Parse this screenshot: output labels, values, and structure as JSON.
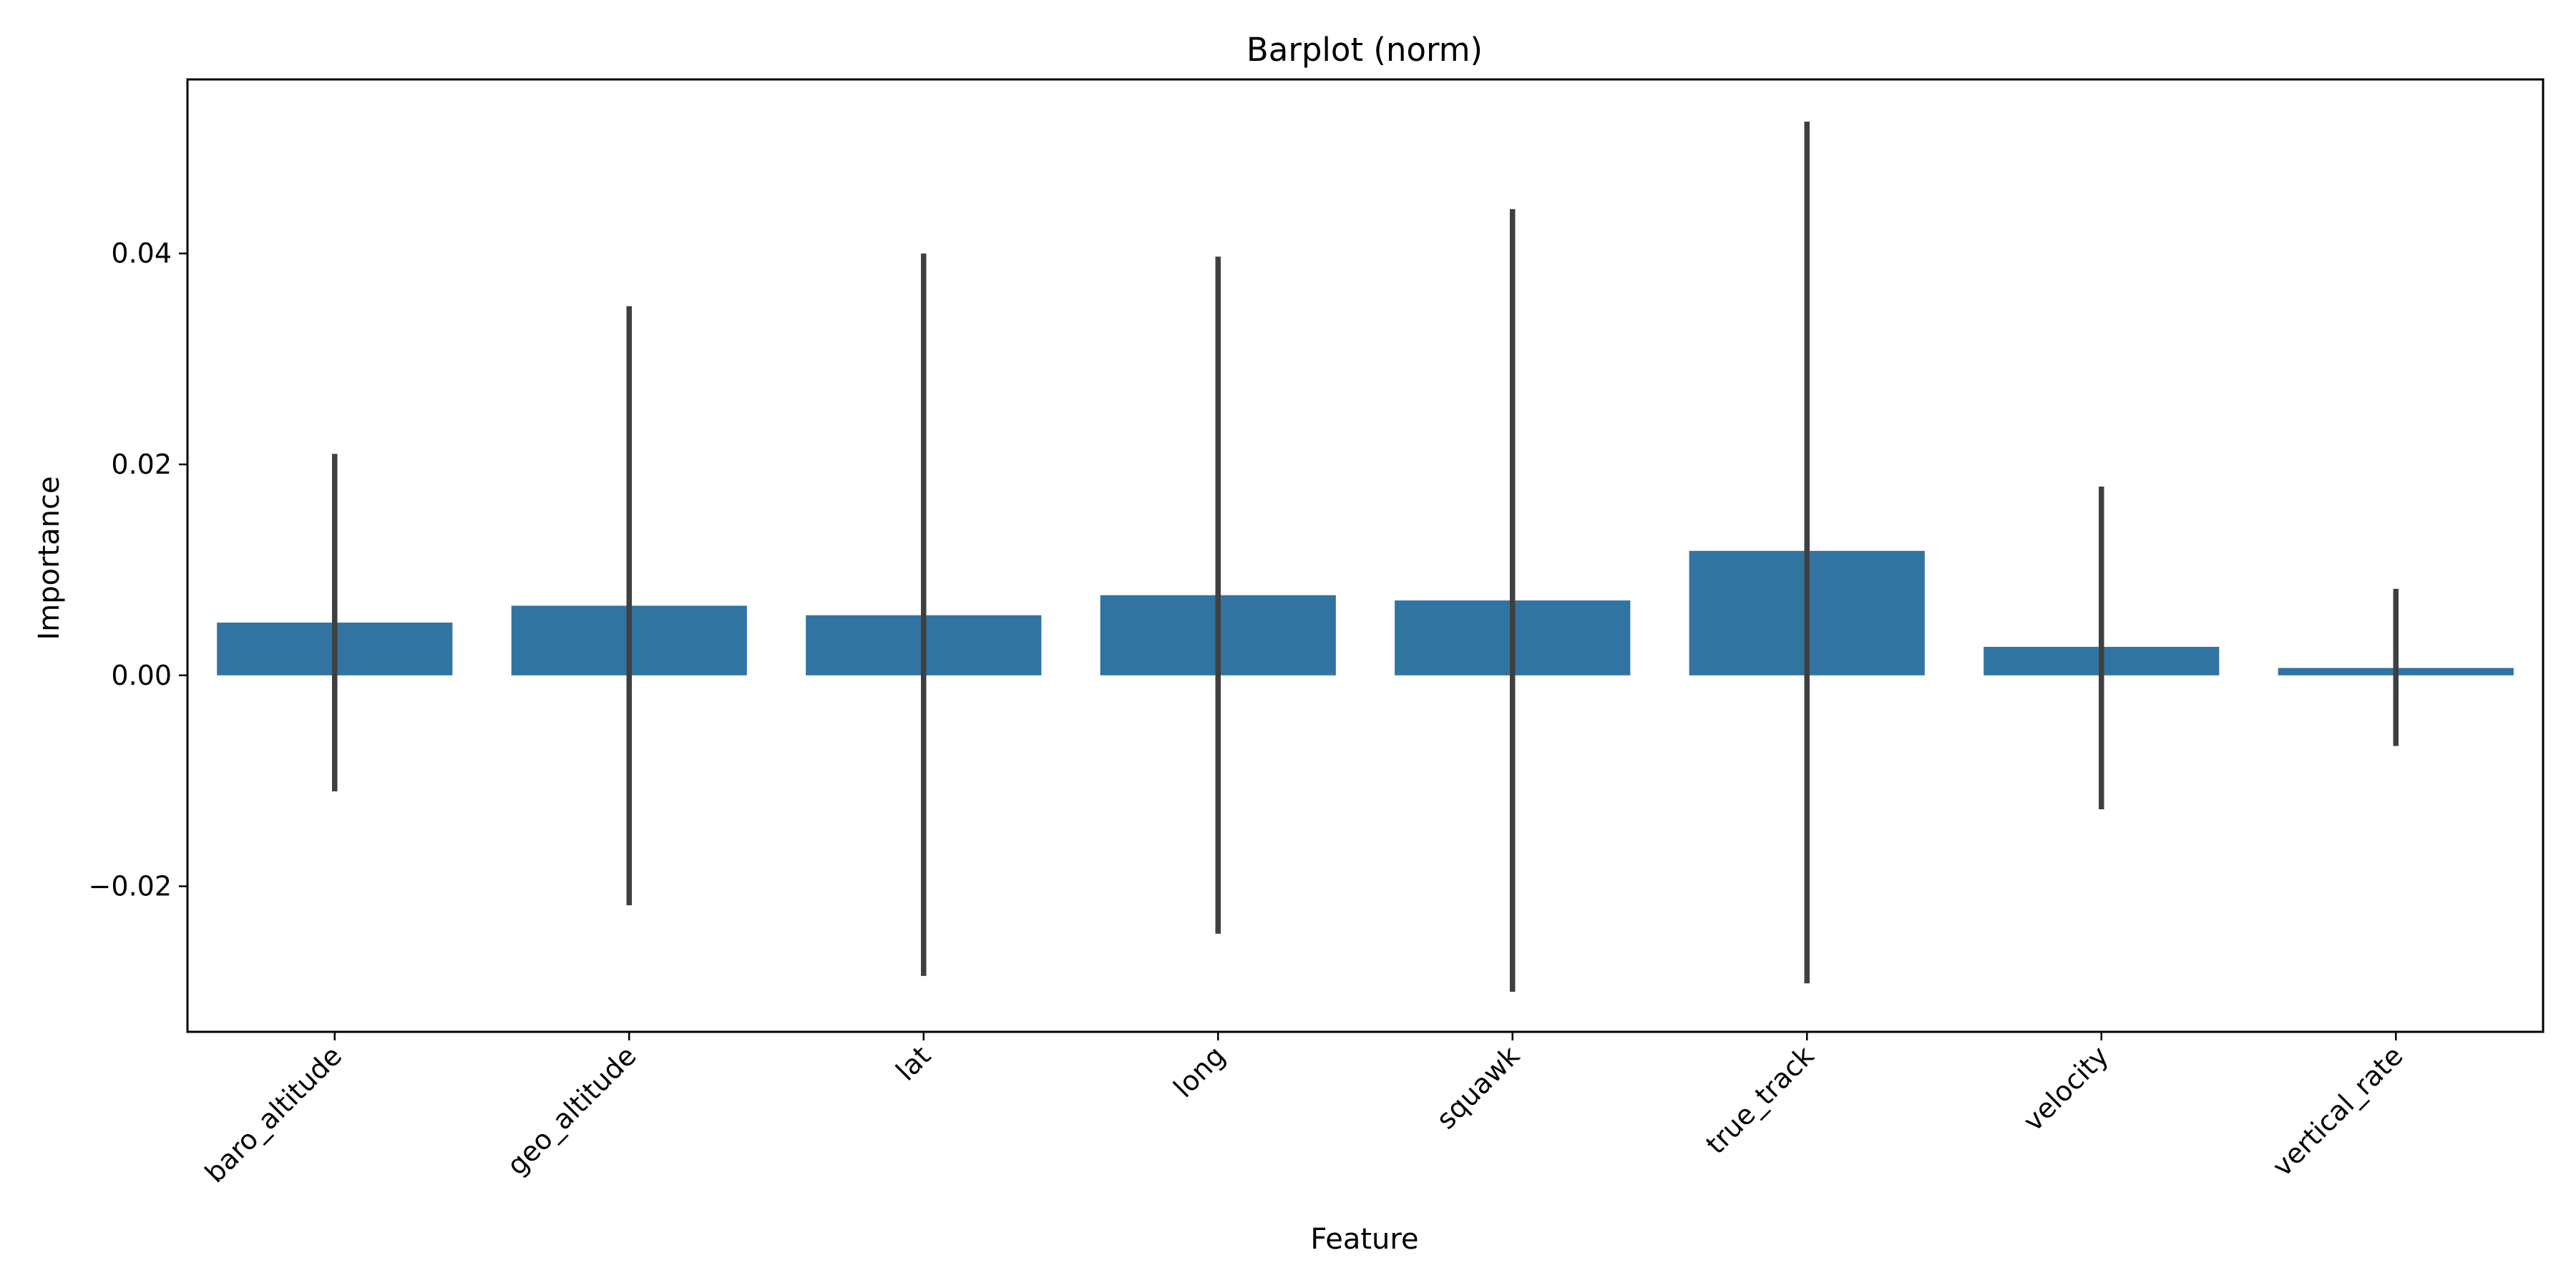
{
  "chart_data": {
    "type": "bar",
    "title": "Barplot (norm)",
    "xlabel": "Feature",
    "ylabel": "Importance",
    "categories": [
      "baro_altitude",
      "geo_altitude",
      "lat",
      "long",
      "squawk",
      "true_track",
      "velocity",
      "vertical_rate"
    ],
    "values": [
      0.005,
      0.0066,
      0.0057,
      0.0076,
      0.0071,
      0.0118,
      0.0027,
      0.0007
    ],
    "error_low": [
      -0.011,
      -0.0218,
      -0.0285,
      -0.0245,
      -0.03,
      -0.0292,
      -0.0127,
      -0.0067
    ],
    "error_high": [
      0.021,
      0.035,
      0.04,
      0.0397,
      0.0442,
      0.0525,
      0.0179,
      0.0082
    ],
    "yticks": [
      -0.02,
      0.0,
      0.02,
      0.04
    ],
    "ytick_labels": [
      "−0.02",
      "0.00",
      "0.02",
      "0.04"
    ],
    "ylim": [
      -0.0338,
      0.0565
    ],
    "grid": false,
    "bar_color": "#3274a1",
    "error_color": "#3f3f3f",
    "xtick_rotation": 45
  }
}
